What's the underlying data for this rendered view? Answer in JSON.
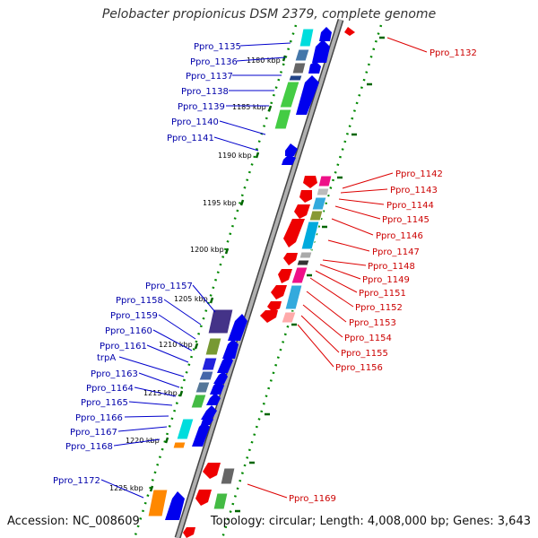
{
  "title": "Pelobacter propionicus DSM 2379, complete genome",
  "footer": {
    "accession": "Accession: NC_008609",
    "summary": "Topology: circular; Length: 4,008,000 bp; Genes: 3,643"
  },
  "colors": {
    "left_strand_label": "#0000aa",
    "right_strand_label": "#cc0000",
    "left_strand_gene": "#0000ee",
    "right_strand_gene": "#ee0000",
    "tick": "#006600",
    "axis": "#888888"
  },
  "kbp_ticks": [
    "1180 kbp",
    "1185 kbp",
    "1190 kbp",
    "1195 kbp",
    "1200 kbp",
    "1205 kbp",
    "1210 kbp",
    "1215 kbp",
    "1220 kbp",
    "1225 kbp"
  ],
  "left_labels": [
    "Ppro_1135",
    "Ppro_1136",
    "Ppro_1137",
    "Ppro_1138",
    "Ppro_1139",
    "Ppro_1140",
    "Ppro_1141",
    "Ppro_1157",
    "Ppro_1158",
    "Ppro_1159",
    "Ppro_1160",
    "Ppro_1161",
    "trpA",
    "Ppro_1163",
    "Ppro_1164",
    "Ppro_1165",
    "Ppro_1166",
    "Ppro_1167",
    "Ppro_1168",
    "Ppro_1172"
  ],
  "right_labels": [
    "Ppro_1132",
    "Ppro_1142",
    "Ppro_1143",
    "Ppro_1144",
    "Ppro_1145",
    "Ppro_1146",
    "Ppro_1147",
    "Ppro_1148",
    "Ppro_1149",
    "Ppro_1151",
    "Ppro_1152",
    "Ppro_1153",
    "Ppro_1154",
    "Ppro_1155",
    "Ppro_1156",
    "Ppro_1169"
  ]
}
